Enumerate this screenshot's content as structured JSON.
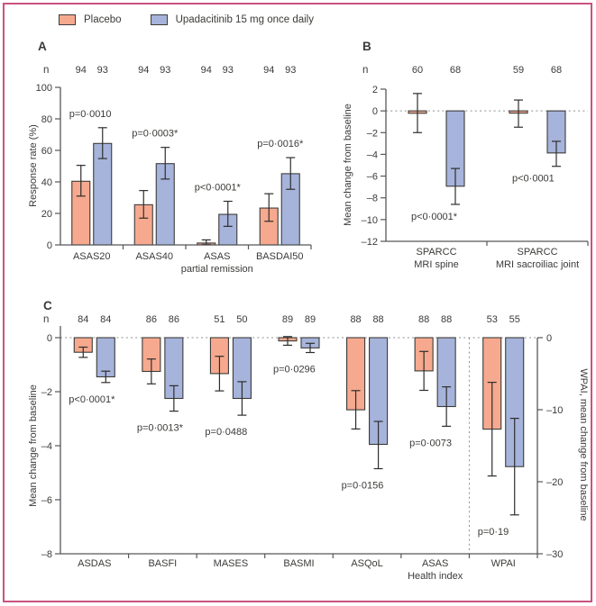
{
  "figure": {
    "border_color": "#C9537F",
    "background": "#FFFFFF"
  },
  "colors": {
    "placebo_fill": "#F6A98E",
    "upadacitinib_fill": "#A6B3DB",
    "bar_outline": "#3C3C3A",
    "error_bar": "#2E2E2C",
    "axis": "#56575B",
    "text": "#3A3A38",
    "dashed_line": "#8F8F8F"
  },
  "legend": {
    "items": [
      {
        "label": "Placebo",
        "color_key": "placebo_fill"
      },
      {
        "label": "Upadacitinib 15 mg once daily",
        "color_key": "upadacitinib_fill"
      }
    ]
  },
  "chart_data": [
    {
      "panel": "A",
      "type": "bar",
      "title": "",
      "n_header": "n",
      "ylabel": "Response rate (%)",
      "ylim": [
        0,
        100
      ],
      "yticks": [
        100,
        80,
        60,
        40,
        20,
        0
      ],
      "grid": false,
      "legend_position": "top",
      "categories": [
        [
          "ASAS20"
        ],
        [
          "ASAS40"
        ],
        [
          "ASAS",
          "partial remission"
        ],
        [
          "BASDAI50"
        ]
      ],
      "n": [
        [
          "94",
          "93"
        ],
        [
          "94",
          "93"
        ],
        [
          "94",
          "93"
        ],
        [
          "94",
          "93"
        ]
      ],
      "series": [
        {
          "name": "Placebo",
          "values": [
            40.4,
            25.5,
            1.2,
            23.4
          ],
          "ci_low": [
            31.0,
            17.0,
            0.3,
            15.0
          ],
          "ci_high": [
            50.5,
            34.5,
            3.2,
            32.5
          ]
        },
        {
          "name": "Upadacitinib 15 mg once daily",
          "values": [
            64.4,
            51.6,
            19.4,
            45.2
          ],
          "ci_low": [
            54.8,
            41.8,
            11.8,
            35.3
          ],
          "ci_high": [
            74.4,
            61.9,
            27.7,
            55.4
          ]
        }
      ],
      "p_values": [
        "p=0·0010",
        "p=0·0003*",
        "p<0·0001*",
        "p=0·0016*"
      ]
    },
    {
      "panel": "B",
      "type": "bar",
      "title": "",
      "n_header": "n",
      "ylabel": "Mean change from baseline",
      "ylim": [
        -12,
        2
      ],
      "yticks": [
        2,
        0,
        -2,
        -4,
        -6,
        -8,
        -10,
        -12
      ],
      "zero_line": true,
      "grid": false,
      "categories": [
        [
          "SPARCC",
          "MRI spine"
        ],
        [
          "SPARCC",
          "MRI sacroiliac joint"
        ]
      ],
      "n": [
        [
          "60",
          "68"
        ],
        [
          "59",
          "68"
        ]
      ],
      "series": [
        {
          "name": "Placebo",
          "values": [
            -0.22,
            -0.21
          ],
          "ci_low": [
            -2.0,
            -1.5
          ],
          "ci_high": [
            1.6,
            1.0
          ]
        },
        {
          "name": "Upadacitinib 15 mg once daily",
          "values": [
            -6.93,
            -3.87
          ],
          "ci_low": [
            -8.6,
            -5.1
          ],
          "ci_high": [
            -5.3,
            -2.8
          ]
        }
      ],
      "p_values": [
        "p<0·0001*",
        "p<0·0001"
      ]
    },
    {
      "panel": "C",
      "type": "bar",
      "title": "",
      "n_header": "n",
      "ylabel": "Mean change from baseline",
      "ylabel_right": "WPAI, mean change from baseline",
      "ylim": [
        -8,
        0
      ],
      "yticks": [
        0,
        -2,
        -4,
        -6,
        -8
      ],
      "ylim_right": [
        -30,
        0
      ],
      "yticks_right": [
        0,
        -10,
        -20,
        -30
      ],
      "zero_line": true,
      "grid": false,
      "right_axis_categories": [
        "WPAI"
      ],
      "categories": [
        [
          "ASDAS"
        ],
        [
          "BASFI"
        ],
        [
          "MASES"
        ],
        [
          "BASMI"
        ],
        [
          "ASQoL"
        ],
        [
          "ASAS",
          "Health index"
        ],
        [
          "WPAI"
        ]
      ],
      "n": [
        [
          "84",
          "84"
        ],
        [
          "86",
          "86"
        ],
        [
          "51",
          "50"
        ],
        [
          "89",
          "89"
        ],
        [
          "88",
          "88"
        ],
        [
          "88",
          "88"
        ],
        [
          "53",
          "55"
        ]
      ],
      "series": [
        {
          "name": "Placebo",
          "values": [
            -0.54,
            -1.25,
            -1.33,
            -0.12,
            -2.67,
            -1.23,
            -12.7
          ],
          "ci_low": [
            -0.73,
            -1.71,
            -1.97,
            -0.28,
            -3.38,
            -1.95,
            -19.2
          ],
          "ci_high": [
            -0.35,
            -0.79,
            -0.69,
            0.04,
            -1.96,
            -0.51,
            -6.2
          ]
        },
        {
          "name": "Upadacitinib 15 mg once daily",
          "values": [
            -1.45,
            -2.25,
            -2.25,
            -0.38,
            -3.95,
            -2.55,
            -17.9
          ],
          "ci_low": [
            -1.66,
            -2.72,
            -2.87,
            -0.55,
            -4.85,
            -3.28,
            -24.6
          ],
          "ci_high": [
            -1.24,
            -1.78,
            -1.63,
            -0.21,
            -3.1,
            -1.82,
            -11.2
          ]
        }
      ],
      "p_values": [
        "p<0·0001*",
        "p=0·0013*",
        "p=0·0488",
        "p=0·0296",
        "p=0·0156",
        "p=0·0073",
        "p=0·19"
      ]
    }
  ]
}
